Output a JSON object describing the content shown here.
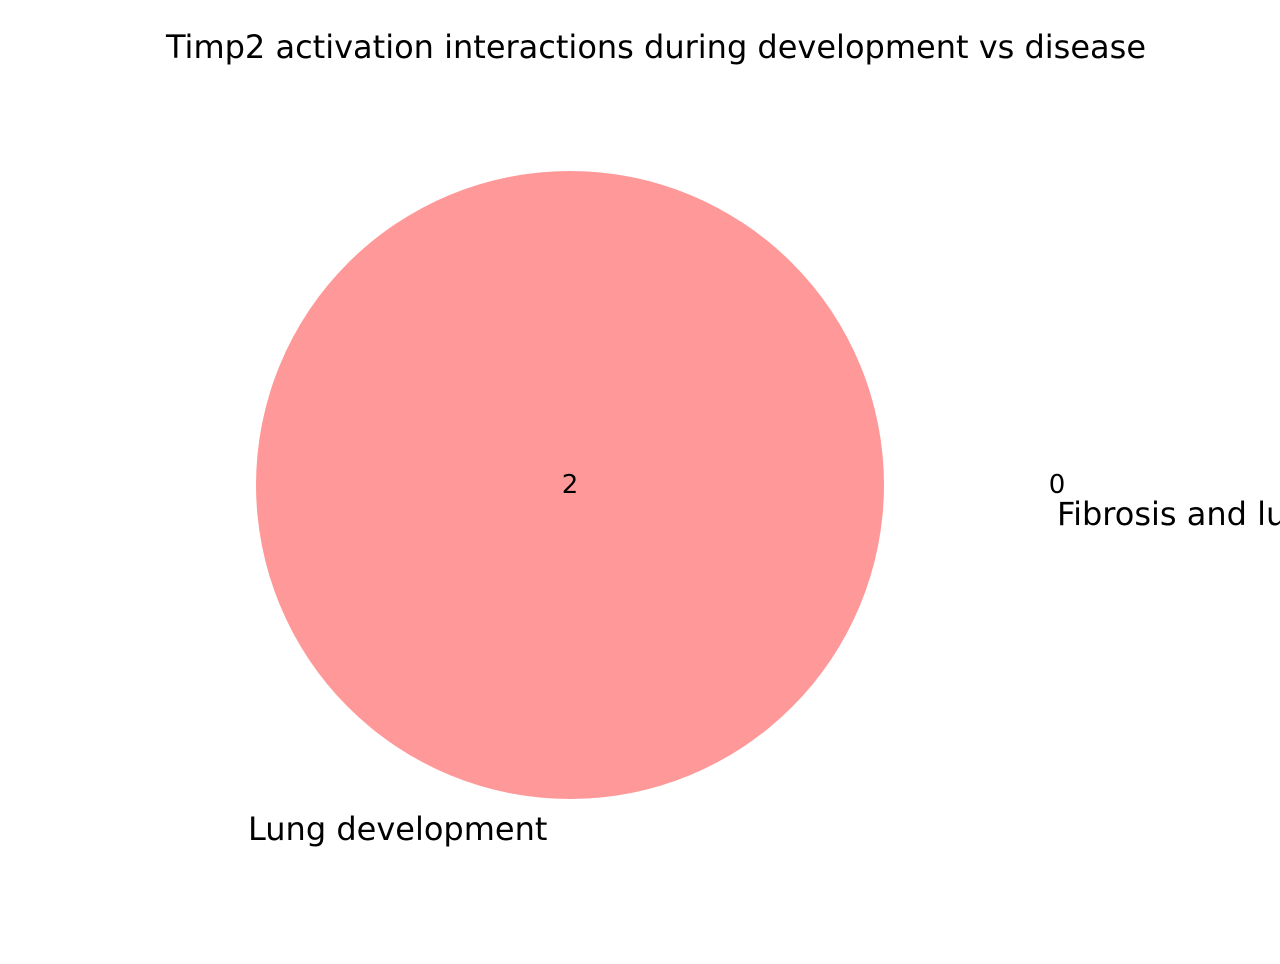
{
  "chart_data": {
    "type": "venn",
    "title": "Timp2 activation interactions during development vs disease",
    "sets": [
      {
        "label": "Lung development",
        "only_count": "2",
        "color": "#ff9999"
      },
      {
        "label": "Fibrosis and lung disease",
        "only_count": "0",
        "color": "#99ccff"
      }
    ],
    "intersection_count": null,
    "background": "#ffffff"
  }
}
